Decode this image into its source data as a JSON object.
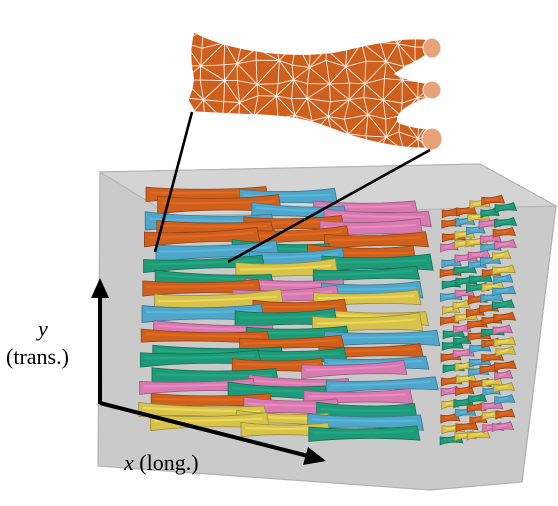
{
  "labels": {
    "y_symbol": "y",
    "y_note": "(trans.)",
    "x_symbol": "x",
    "x_note": "(long.)"
  },
  "colors": {
    "box_face": "#c9c9c9",
    "box_edge": "#aaaaaa",
    "fiber_palette": [
      "#cf5f1c",
      "#1f9a78",
      "#d7c34c",
      "#d67ab0",
      "#4fa6c9"
    ],
    "zoom_fiber": "#cf5f1c",
    "mesh_lines": "#ffffff",
    "axis": "#000000"
  },
  "icons": {
    "y_axis": "arrow-up-icon",
    "x_axis": "arrow-right-icon"
  }
}
